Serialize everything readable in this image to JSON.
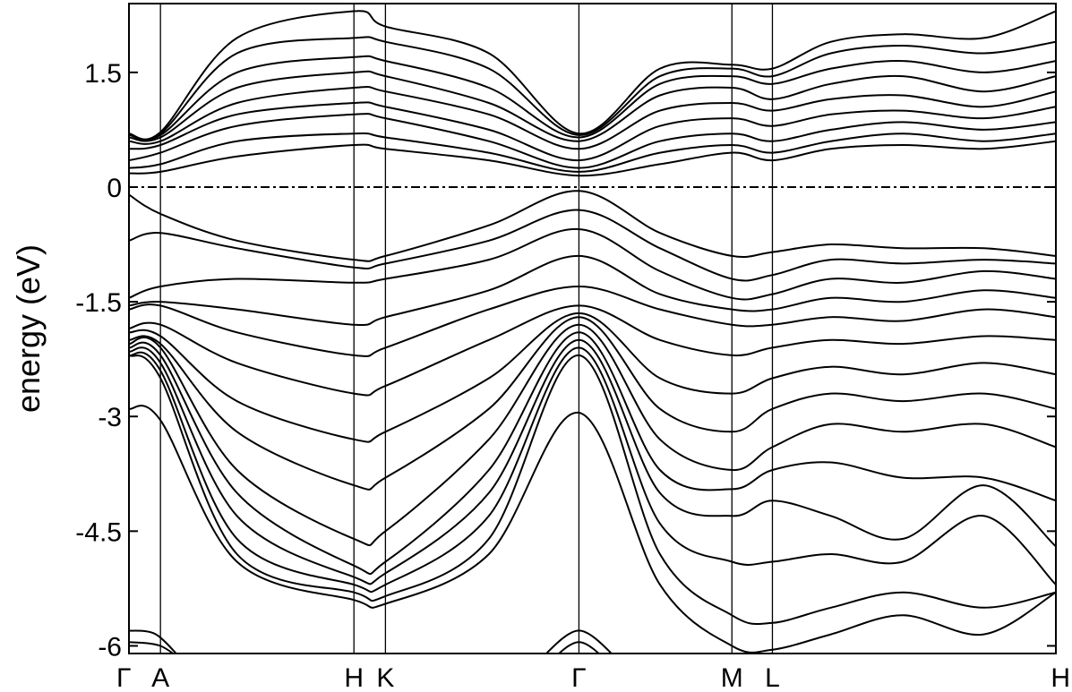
{
  "chart_data": {
    "type": "line",
    "title": "",
    "xlabel": "",
    "ylabel": "energy (eV)",
    "ylim": [
      -6.1,
      2.4
    ],
    "grid": false,
    "legend": "none",
    "y_ticks": [
      {
        "value": 1.5,
        "label": "1.5"
      },
      {
        "value": 0,
        "label": "0"
      },
      {
        "value": -1.5,
        "label": "-1.5"
      },
      {
        "value": -3,
        "label": "-3"
      },
      {
        "value": -4.5,
        "label": "-4.5"
      },
      {
        "value": -6,
        "label": "-6"
      }
    ],
    "high_symmetry_points": [
      {
        "label": "Γ",
        "x": 0.0
      },
      {
        "label": "A",
        "x": 0.35
      },
      {
        "label": "H",
        "x": 2.5
      },
      {
        "label": "K",
        "x": 2.85
      },
      {
        "label": "Γ",
        "x": 5.0
      },
      {
        "label": "M",
        "x": 6.7
      },
      {
        "label": "L",
        "x": 7.15
      },
      {
        "label": "H",
        "x": 10.3
      }
    ],
    "fermi_level": 0,
    "sample_x": [
      0,
      0.35,
      1.2,
      2.5,
      2.85,
      4.0,
      5.0,
      5.9,
      6.7,
      7.15,
      7.8,
      8.6,
      9.5,
      10.3
    ],
    "conduction_bands": [
      [
        0.18,
        0.2,
        0.4,
        0.55,
        0.5,
        0.35,
        0.15,
        0.3,
        0.45,
        0.35,
        0.5,
        0.55,
        0.5,
        0.6
      ],
      [
        0.25,
        0.3,
        0.6,
        0.7,
        0.65,
        0.45,
        0.2,
        0.45,
        0.55,
        0.45,
        0.6,
        0.7,
        0.6,
        0.7
      ],
      [
        0.35,
        0.45,
        0.8,
        0.95,
        0.9,
        0.6,
        0.25,
        0.6,
        0.7,
        0.6,
        0.75,
        0.85,
        0.75,
        0.85
      ],
      [
        0.5,
        0.55,
        0.95,
        1.1,
        1.05,
        0.75,
        0.35,
        0.8,
        0.9,
        0.8,
        0.95,
        1.0,
        0.9,
        1.05
      ],
      [
        0.6,
        0.6,
        1.1,
        1.3,
        1.25,
        0.95,
        0.5,
        1.0,
        1.1,
        1.0,
        1.15,
        1.2,
        1.05,
        1.25
      ],
      [
        0.65,
        0.65,
        1.3,
        1.5,
        1.45,
        1.1,
        0.6,
        1.2,
        1.3,
        1.15,
        1.35,
        1.45,
        1.25,
        1.45
      ],
      [
        0.68,
        0.68,
        1.5,
        1.7,
        1.65,
        1.3,
        0.65,
        1.35,
        1.45,
        1.35,
        1.55,
        1.65,
        1.5,
        1.65
      ],
      [
        0.7,
        0.7,
        1.75,
        1.95,
        1.9,
        1.55,
        0.68,
        1.45,
        1.55,
        1.45,
        1.75,
        1.85,
        1.75,
        1.9
      ],
      [
        0.7,
        0.72,
        1.95,
        2.3,
        2.1,
        1.75,
        0.7,
        1.55,
        1.6,
        1.55,
        1.9,
        2.0,
        1.95,
        2.3
      ]
    ],
    "valence_bands": [
      [
        -0.1,
        -0.35,
        -0.7,
        -0.95,
        -0.9,
        -0.5,
        -0.05,
        -0.6,
        -0.9,
        -0.85,
        -0.75,
        -0.8,
        -0.8,
        -0.9
      ],
      [
        -0.7,
        -0.6,
        -0.8,
        -1.05,
        -1.0,
        -0.7,
        -0.3,
        -0.8,
        -1.2,
        -1.15,
        -0.95,
        -1.0,
        -0.95,
        -1.0
      ],
      [
        -1.45,
        -1.3,
        -1.2,
        -1.25,
        -1.2,
        -0.95,
        -0.55,
        -1.1,
        -1.45,
        -1.4,
        -1.2,
        -1.25,
        -1.1,
        -1.2
      ],
      [
        -1.55,
        -1.5,
        -1.6,
        -1.8,
        -1.7,
        -1.35,
        -0.9,
        -1.4,
        -1.6,
        -1.6,
        -1.45,
        -1.5,
        -1.35,
        -1.45
      ],
      [
        -1.6,
        -1.55,
        -1.9,
        -2.2,
        -2.1,
        -1.6,
        -1.3,
        -1.6,
        -1.8,
        -1.8,
        -1.7,
        -1.75,
        -1.6,
        -1.7
      ],
      [
        -1.85,
        -1.8,
        -2.3,
        -2.7,
        -2.6,
        -2.0,
        -1.55,
        -2.0,
        -2.2,
        -2.1,
        -2.0,
        -2.05,
        -1.95,
        -2.0
      ],
      [
        -1.9,
        -1.95,
        -2.8,
        -3.3,
        -3.2,
        -2.5,
        -1.65,
        -2.5,
        -2.7,
        -2.5,
        -2.35,
        -2.45,
        -2.3,
        -2.45
      ],
      [
        -2.0,
        -2.05,
        -3.2,
        -3.9,
        -3.8,
        -2.9,
        -1.7,
        -2.9,
        -3.2,
        -2.9,
        -2.7,
        -2.8,
        -2.7,
        -2.9
      ],
      [
        -2.05,
        -2.1,
        -3.7,
        -4.6,
        -4.5,
        -3.3,
        -1.8,
        -3.3,
        -3.7,
        -3.4,
        -3.1,
        -3.2,
        -3.1,
        -3.4
      ],
      [
        -2.1,
        -2.2,
        -4.0,
        -4.95,
        -4.9,
        -3.7,
        -1.9,
        -3.7,
        -3.95,
        -3.7,
        -3.6,
        -3.8,
        -3.8,
        -4.1
      ],
      [
        -2.15,
        -2.3,
        -4.3,
        -5.1,
        -5.05,
        -4.0,
        -2.0,
        -4.0,
        -4.3,
        -4.1,
        -4.3,
        -4.6,
        -3.9,
        -4.7
      ],
      [
        -2.2,
        -2.4,
        -4.6,
        -5.2,
        -5.2,
        -4.3,
        -2.1,
        -4.4,
        -4.9,
        -4.9,
        -4.8,
        -4.9,
        -4.3,
        -5.2
      ],
      [
        -2.2,
        -2.5,
        -4.8,
        -5.3,
        -5.35,
        -4.6,
        -2.2,
        -4.8,
        -5.6,
        -5.7,
        -5.5,
        -5.3,
        -5.5,
        -5.3
      ],
      [
        -2.9,
        -3.05,
        -4.9,
        -5.4,
        -5.45,
        -4.8,
        -2.95,
        -5.2,
        -6.0,
        -6.05,
        -5.85,
        -5.6,
        -5.85,
        -5.3
      ]
    ],
    "deep_bands": [
      {
        "x": [
          0,
          0.3,
          0.6
        ],
        "y": [
          -5.8,
          -5.85,
          -6.2
        ]
      },
      {
        "x": [
          0,
          0.35,
          0.65
        ],
        "y": [
          -5.95,
          -6.0,
          -6.25
        ]
      },
      {
        "x": [
          4.55,
          5.0,
          5.45
        ],
        "y": [
          -6.2,
          -5.8,
          -6.2
        ]
      },
      {
        "x": [
          4.6,
          5.0,
          5.4
        ],
        "y": [
          -6.3,
          -5.95,
          -6.3
        ]
      }
    ]
  }
}
